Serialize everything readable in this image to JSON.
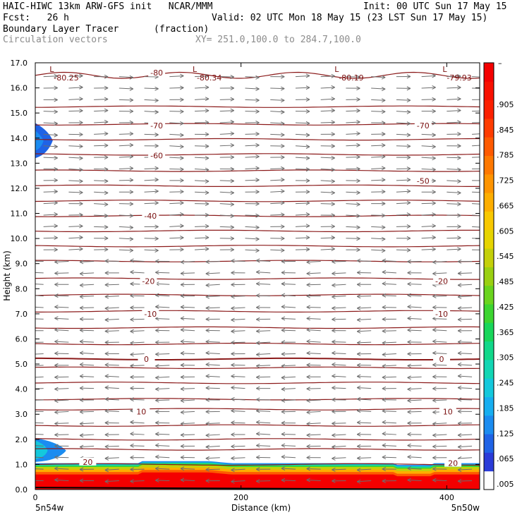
{
  "header": {
    "line1_left": "HAIC-HIWC 13km ARW-GFS init   NCAR/MMM",
    "line1_right": "Init: 00 UTC Sun 17 May 15",
    "line2_left": "Fcst:   26 h",
    "line2_right": "Valid: 02 UTC Mon 18 May 15 (23 LST Sun 17 May 15)",
    "line3_left": "Boundary Layer Tracer",
    "line3_units": "(fraction)",
    "line4_left": "Circulation vectors",
    "line4_right": "XY= 251.0,100.0 to 284.7,100.0"
  },
  "colors": {
    "contour": "#8b1a1a",
    "vector": "#6e6e6e",
    "colorbar": [
      "#ffffff",
      "#2a3cd8",
      "#1f63e6",
      "#1b8cf0",
      "#17aef0",
      "#14c8dc",
      "#12d6b4",
      "#11d88a",
      "#18d65a",
      "#3cd530",
      "#6ad41e",
      "#9ad012",
      "#c4d00a",
      "#e6d400",
      "#f8c800",
      "#fdae00",
      "#fe9400",
      "#fe7800",
      "#fe5a00",
      "#fe3c00",
      "#fc2000",
      "#f81000",
      "#f40000"
    ]
  },
  "chart_data": {
    "type": "vertical cross-section",
    "field": "Boundary Layer Tracer",
    "field_units": "(fraction)",
    "overlay_contours": "temperature (C)",
    "overlay_vectors": "Circulation vectors",
    "xlabel": "Distance (km)",
    "ylabel": "Height (km)",
    "xlim": [
      0,
      432
    ],
    "ylim": [
      0,
      17
    ],
    "x_ticks": [
      0,
      200,
      400
    ],
    "x_tick_labels": [
      "0",
      "200",
      "400"
    ],
    "y_ticks": [
      0,
      1,
      2,
      3,
      4,
      5,
      6,
      7,
      8,
      9,
      10,
      11,
      12,
      13,
      14,
      15,
      16,
      17
    ],
    "y_tick_labels": [
      "0.0",
      "1.0",
      "2.0",
      "3.0",
      "4.0",
      "5.0",
      "6.0",
      "7.0",
      "8.0",
      "9.0",
      "10.0",
      "11.0",
      "12.0",
      "13.0",
      "14.0",
      "15.0",
      "16.0",
      "17.0"
    ],
    "x_endpoint_left": "5n54w",
    "x_endpoint_right": "5n50w",
    "colorbar_levels": [
      ".005",
      ".065",
      ".125",
      ".185",
      ".245",
      ".305",
      ".365",
      ".425",
      ".485",
      ".545",
      ".605",
      ".665",
      ".725",
      ".785",
      ".845",
      ".905"
    ],
    "contour_labels": [
      {
        "text": "-80",
        "x": 118,
        "z": 16.6
      },
      {
        "text": "-70",
        "x": 118,
        "z": 14.5
      },
      {
        "text": "-70",
        "x": 377,
        "z": 14.5
      },
      {
        "text": "-60",
        "x": 118,
        "z": 13.3
      },
      {
        "text": "-50",
        "x": 377,
        "z": 12.3
      },
      {
        "text": "-40",
        "x": 112,
        "z": 10.9
      },
      {
        "text": "-20",
        "x": 110,
        "z": 8.3
      },
      {
        "text": "-20",
        "x": 395,
        "z": 8.3
      },
      {
        "text": "-10",
        "x": 112,
        "z": 7.0
      },
      {
        "text": "-10",
        "x": 395,
        "z": 7.0
      },
      {
        "text": "0",
        "x": 108,
        "z": 5.2
      },
      {
        "text": "0",
        "x": 395,
        "z": 5.2
      },
      {
        "text": "10",
        "x": 103,
        "z": 3.1
      },
      {
        "text": "10",
        "x": 401,
        "z": 3.1
      },
      {
        "text": "20",
        "x": 51,
        "z": 1.1
      },
      {
        "text": "20",
        "x": 406,
        "z": 1.05
      }
    ],
    "low_markers": [
      {
        "text": "-80.25",
        "x": 18,
        "z": 16.55
      },
      {
        "text": "-80.34",
        "x": 157,
        "z": 16.55
      },
      {
        "text": "-80.19",
        "x": 295,
        "z": 16.55
      },
      {
        "text": "-79.93",
        "x": 400,
        "z": 16.55
      }
    ],
    "contour_heights_km": [
      1.0,
      1.6,
      2.0,
      2.55,
      3.2,
      3.6,
      4.25,
      4.85,
      5.2,
      5.8,
      6.45,
      7.1,
      7.75,
      8.4,
      9.1,
      9.7,
      10.3,
      10.9,
      11.5,
      12.1,
      12.7,
      13.35,
      13.95,
      14.55,
      15.25
    ]
  }
}
